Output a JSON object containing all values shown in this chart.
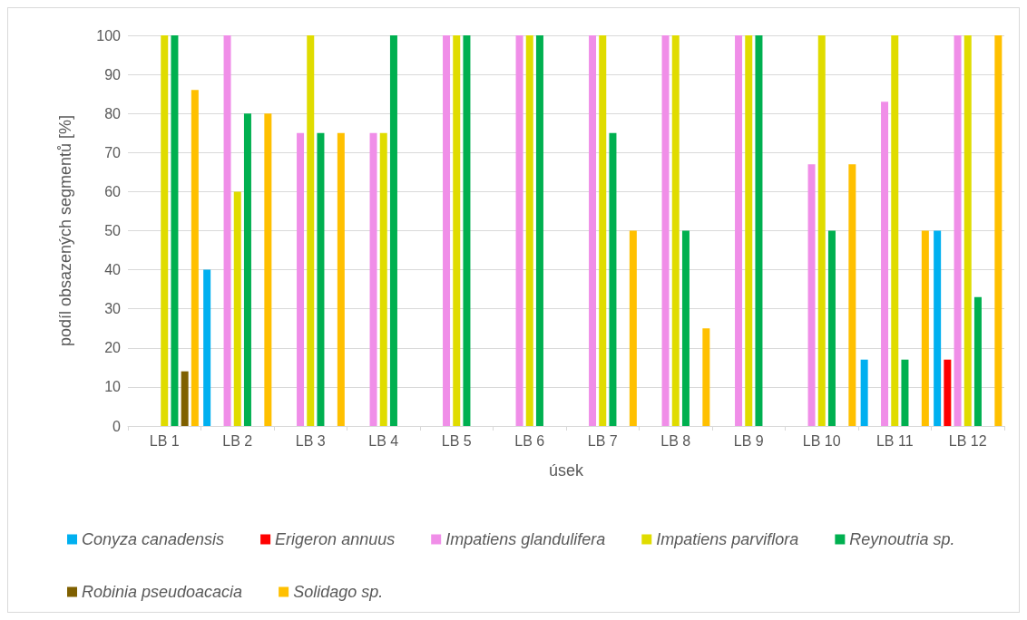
{
  "chart_data": {
    "type": "bar",
    "xlabel": "úsek",
    "ylabel": "podíl obsazených segmentů [%]",
    "categories": [
      "LB 1",
      "LB 2",
      "LB 3",
      "LB 4",
      "LB 5",
      "LB 6",
      "LB 7",
      "LB 8",
      "LB 9",
      "LB 10",
      "LB 11",
      "LB 12"
    ],
    "series": [
      {
        "name": "Conyza canadensis",
        "color": "#00b0f0",
        "values": [
          0,
          40,
          0,
          0,
          0,
          0,
          0,
          0,
          0,
          0,
          17,
          50
        ]
      },
      {
        "name": "Erigeron annuus",
        "color": "#ff0000",
        "values": [
          0,
          0,
          0,
          0,
          0,
          0,
          0,
          0,
          0,
          0,
          0,
          17
        ]
      },
      {
        "name": "Impatiens glandulifera",
        "color": "#f08ee8",
        "values": [
          0,
          100,
          75,
          75,
          100,
          100,
          100,
          100,
          100,
          67,
          83,
          100
        ]
      },
      {
        "name": "Impatiens parviflora",
        "color": "#e0dc00",
        "values": [
          100,
          60,
          100,
          75,
          100,
          100,
          100,
          100,
          100,
          100,
          100,
          100
        ]
      },
      {
        "name": "Reynoutria sp.",
        "color": "#00b050",
        "values": [
          100,
          80,
          75,
          100,
          100,
          100,
          75,
          50,
          100,
          50,
          17,
          33
        ]
      },
      {
        "name": "Robinia pseudoacacia",
        "color": "#7f6000",
        "values": [
          14,
          0,
          0,
          0,
          0,
          0,
          0,
          0,
          0,
          0,
          0,
          0
        ]
      },
      {
        "name": "Solidago sp.",
        "color": "#ffc000",
        "values": [
          86,
          80,
          75,
          0,
          0,
          0,
          50,
          25,
          0,
          67,
          50,
          100
        ]
      }
    ],
    "ylim": [
      0,
      100
    ],
    "yticks": [
      0,
      10,
      20,
      30,
      40,
      50,
      60,
      70,
      80,
      90,
      100
    ],
    "grid": "y",
    "legend": "bottom"
  }
}
